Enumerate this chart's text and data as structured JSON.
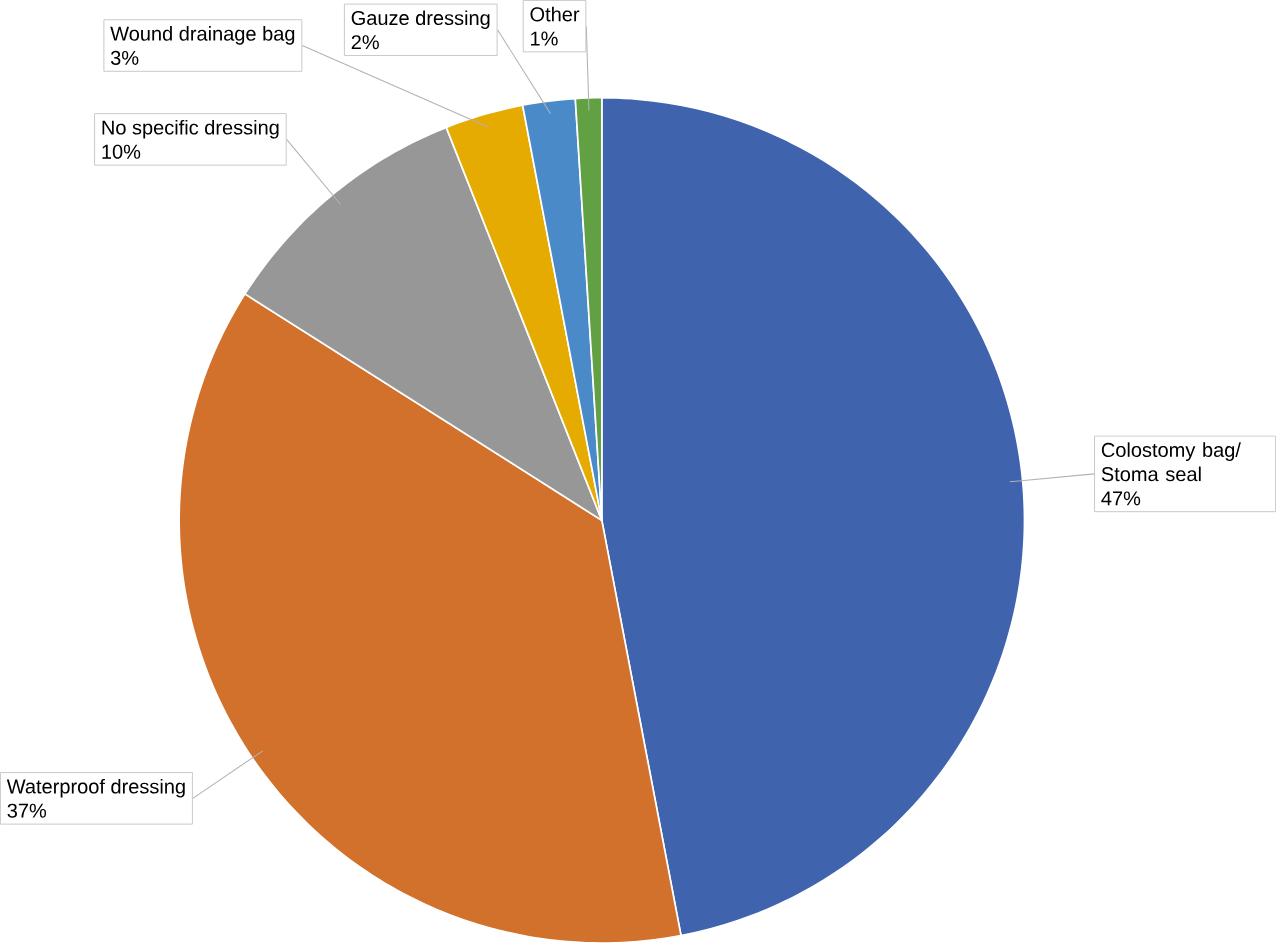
{
  "chart_data": {
    "type": "pie",
    "categories": [
      "Colostomy bag/ Stoma seal",
      "Waterproof dressing",
      "No specific dressing",
      "Wound drainage bag",
      "Gauze dressing",
      "Other"
    ],
    "values": [
      47,
      37,
      10,
      3,
      2,
      1
    ],
    "colors": [
      "#3f63ad",
      "#d2712b",
      "#979797",
      "#e5ab00",
      "#4a8ac8",
      "#62a044"
    ],
    "value_labels": [
      "47%",
      "37%",
      "10%",
      "3%",
      "2%",
      "1%"
    ]
  }
}
